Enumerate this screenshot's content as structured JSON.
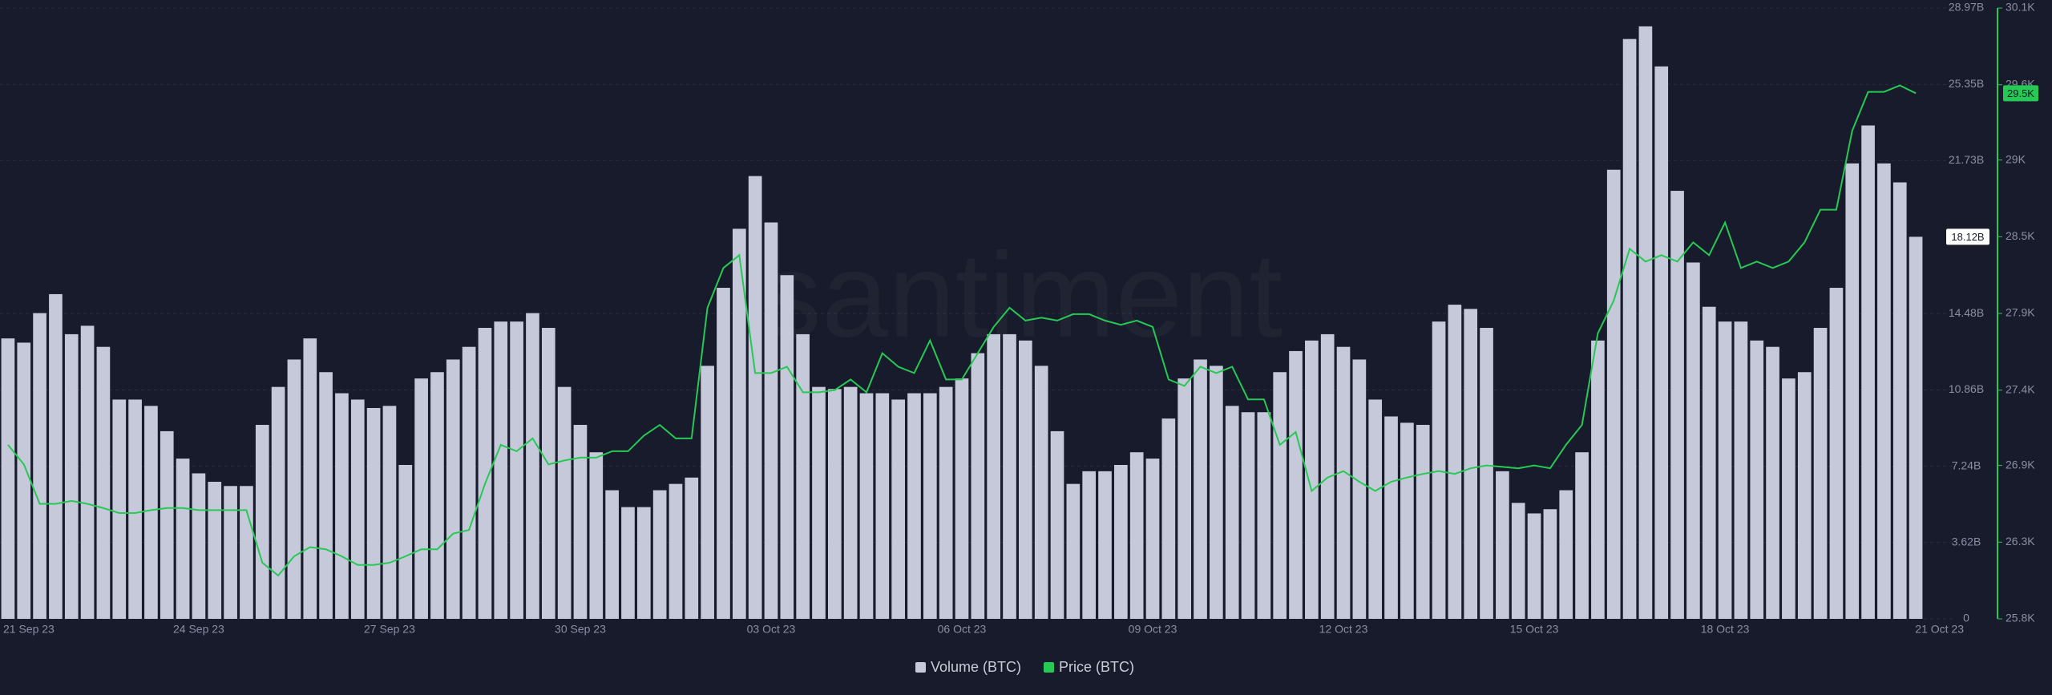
{
  "chart_data": {
    "type": "bar",
    "watermark": "santiment",
    "categories": [
      "21 Sep 23",
      null,
      null,
      null,
      null,
      null,
      null,
      null,
      null,
      null,
      null,
      null,
      "24 Sep 23",
      null,
      null,
      null,
      null,
      null,
      null,
      null,
      null,
      null,
      null,
      null,
      "27 Sep 23",
      null,
      null,
      null,
      null,
      null,
      null,
      null,
      null,
      null,
      null,
      null,
      "30 Sep 23",
      null,
      null,
      null,
      null,
      null,
      null,
      null,
      null,
      null,
      null,
      null,
      "03 Oct 23",
      null,
      null,
      null,
      null,
      null,
      null,
      null,
      null,
      null,
      null,
      null,
      "06 Oct 23",
      null,
      null,
      null,
      null,
      null,
      null,
      null,
      null,
      null,
      null,
      null,
      "09 Oct 23",
      null,
      null,
      null,
      null,
      null,
      null,
      null,
      null,
      null,
      null,
      null,
      "12 Oct 23",
      null,
      null,
      null,
      null,
      null,
      null,
      null,
      null,
      null,
      null,
      null,
      "15 Oct 23",
      null,
      null,
      null,
      null,
      null,
      null,
      null,
      null,
      null,
      null,
      null,
      "18 Oct 23",
      null,
      null,
      null,
      null,
      null,
      null,
      null,
      null,
      null,
      null,
      null,
      "21 Oct 23"
    ],
    "series": [
      {
        "name": "Volume (BTC)",
        "color": "#c6c9da",
        "axis": "y",
        "current_label": "18.12B",
        "values": [
          13.3,
          13.1,
          14.5,
          15.4,
          13.5,
          13.9,
          12.9,
          10.4,
          10.4,
          10.1,
          8.9,
          7.6,
          6.9,
          6.5,
          6.3,
          6.3,
          9.2,
          11.0,
          12.3,
          13.3,
          11.7,
          10.7,
          10.4,
          10.0,
          10.1,
          7.3,
          11.4,
          11.7,
          12.3,
          12.9,
          13.8,
          14.1,
          14.1,
          14.5,
          13.8,
          11.0,
          9.2,
          7.9,
          6.1,
          5.3,
          5.3,
          6.1,
          6.4,
          6.7,
          12.0,
          15.7,
          18.5,
          21.0,
          18.8,
          16.3,
          13.5,
          11.0,
          10.9,
          11.0,
          10.7,
          10.7,
          10.4,
          10.7,
          10.7,
          11.0,
          11.4,
          12.6,
          13.5,
          13.5,
          13.2,
          12.0,
          8.9,
          6.4,
          7.0,
          7.0,
          7.3,
          7.9,
          7.6,
          9.5,
          11.4,
          12.3,
          12.0,
          10.1,
          9.8,
          9.8,
          11.7,
          12.7,
          13.2,
          13.5,
          12.9,
          12.3,
          10.4,
          9.6,
          9.3,
          9.2,
          14.1,
          14.9,
          14.7,
          13.8,
          7.0,
          5.5,
          5.0,
          5.2,
          6.1,
          7.9,
          13.2,
          21.3,
          27.5,
          28.1,
          26.2,
          20.3,
          16.9,
          14.8,
          14.1,
          14.1,
          13.2,
          12.9,
          11.4,
          11.7,
          13.8,
          15.7,
          21.6,
          23.4,
          21.6,
          20.7,
          18.12
        ]
      },
      {
        "name": "Price (BTC)",
        "color": "#26c953",
        "axis": "y2",
        "type": "line",
        "current_label": "29.5K",
        "values": [
          27025,
          26887,
          26610,
          26610,
          26630,
          26610,
          26580,
          26545,
          26545,
          26565,
          26580,
          26580,
          26565,
          26565,
          26565,
          26565,
          26195,
          26105,
          26240,
          26305,
          26290,
          26240,
          26180,
          26180,
          26195,
          26240,
          26290,
          26290,
          26400,
          26425,
          26750,
          27025,
          26980,
          27070,
          26887,
          26915,
          26935,
          26935,
          26980,
          26980,
          27090,
          27165,
          27070,
          27070,
          27990,
          28270,
          28360,
          27530,
          27530,
          27575,
          27395,
          27395,
          27410,
          27485,
          27395,
          27670,
          27575,
          27530,
          27760,
          27485,
          27485,
          27670,
          27855,
          27990,
          27900,
          27920,
          27900,
          27945,
          27945,
          27900,
          27870,
          27900,
          27855,
          27485,
          27440,
          27575,
          27530,
          27575,
          27345,
          27345,
          27025,
          27115,
          26700,
          26795,
          26840,
          26765,
          26700,
          26765,
          26795,
          26820,
          26840,
          26820,
          26860,
          26880,
          26870,
          26860,
          26880,
          26860,
          27025,
          27165,
          27810,
          28040,
          28405,
          28315,
          28360,
          28315,
          28450,
          28360,
          28590,
          28270,
          28315,
          28270,
          28315,
          28450,
          28680,
          28680,
          29235,
          29510,
          29510,
          29555,
          29500
        ]
      }
    ],
    "ylim": [
      0,
      28.97
    ],
    "yticks": [
      0,
      {
        "value": 3.62,
        "label": "3.62B"
      },
      {
        "value": 7.24,
        "label": "7.24B"
      },
      {
        "value": 10.86,
        "label": "10.86B"
      },
      {
        "value": 14.48,
        "label": "14.48B"
      },
      {
        "value": 21.73,
        "label": "21.73B"
      },
      {
        "value": 25.35,
        "label": "25.35B"
      },
      {
        "value": 28.97,
        "label": "28.97B"
      }
    ],
    "y2lim": [
      25800,
      30100
    ],
    "y2ticks": [
      {
        "value": 25800,
        "label": "25.8K"
      },
      {
        "value": 26340,
        "label": "26.3K"
      },
      {
        "value": 26880,
        "label": "26.9K"
      },
      {
        "value": 27410,
        "label": "27.4K"
      },
      {
        "value": 27950,
        "label": "27.9K"
      },
      {
        "value": 28490,
        "label": "28.5K"
      },
      {
        "value": 29030,
        "label": "29K"
      },
      {
        "value": 29560,
        "label": "29.6K"
      },
      {
        "value": 30100,
        "label": "30.1K"
      }
    ],
    "grid": true
  }
}
